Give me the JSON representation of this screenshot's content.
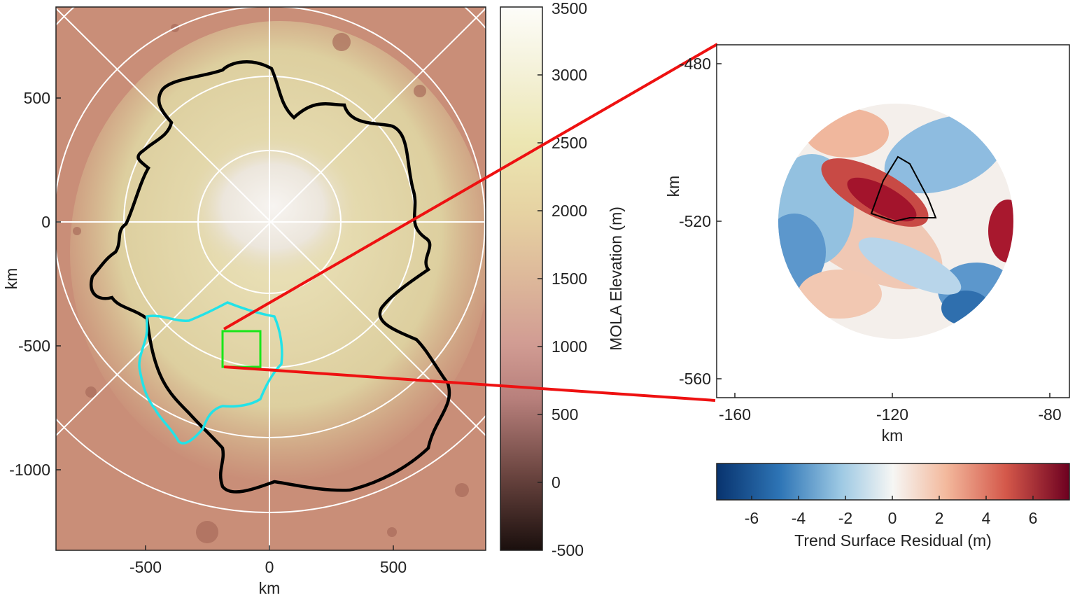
{
  "map": {
    "xlabel": "km",
    "ylabel": "km",
    "x_ticks": [
      "-500",
      "0",
      "500"
    ],
    "y_ticks": [
      "500",
      "0",
      "-500",
      "-1000"
    ],
    "xlim": [
      -870,
      870
    ],
    "ylim": [
      -1320,
      870
    ],
    "graticule": "polar grid (circles and radial lines)",
    "outlines": [
      {
        "color": "#000000"
      },
      {
        "color": "#22e3e8"
      }
    ],
    "inset_box": {
      "color": "#19e619",
      "x_range": [
        -190,
        -40
      ],
      "y_range": [
        -590,
        -440
      ]
    }
  },
  "elevation_colorbar": {
    "label": "MOLA Elevation (m)",
    "ticks": [
      "3500",
      "3000",
      "2500",
      "2000",
      "1500",
      "1000",
      "500",
      "0",
      "-500"
    ],
    "range": [
      -500,
      3500
    ]
  },
  "zoom": {
    "xlabel": "km",
    "ylabel": "km",
    "x_ticks": [
      "-160",
      "-120",
      "-80"
    ],
    "y_ticks": [
      "-480",
      "-520",
      "-560"
    ],
    "xlim": [
      -165,
      -75
    ],
    "ylim": [
      -565,
      -475
    ]
  },
  "residual_colorbar": {
    "label": "Trend Surface Residual (m)",
    "ticks": [
      "-6",
      "-4",
      "-2",
      "0",
      "2",
      "4",
      "6"
    ],
    "range": [
      -7.5,
      7.5
    ]
  },
  "connector_color": "#ee1111"
}
